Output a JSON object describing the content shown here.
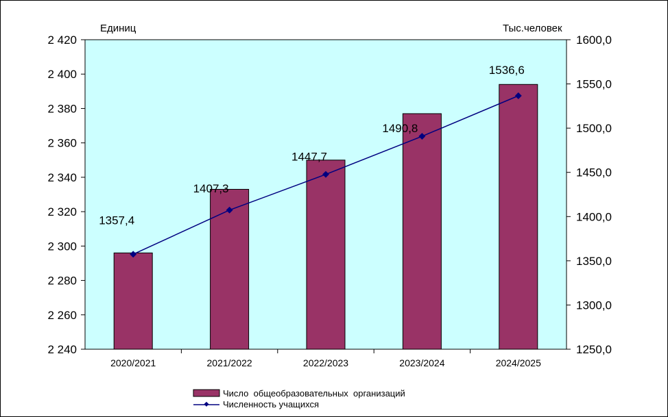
{
  "chart_data": {
    "type": "bar",
    "categories": [
      "2020/2021",
      "2021/2022",
      "2022/2023",
      "2023/2024",
      "2024/2025"
    ],
    "series": [
      {
        "name": "Число  общеобразовательных  организаций",
        "type": "bar",
        "axis": "left",
        "values": [
          2296,
          2333,
          2350,
          2377,
          2394
        ],
        "color": "#993366"
      },
      {
        "name": "Численность учащихся",
        "type": "line",
        "axis": "right",
        "values": [
          1357.4,
          1407.3,
          1447.7,
          1490.8,
          1536.6
        ],
        "labels": [
          "1357,4",
          "1407,3",
          "1447,7",
          "1490,8",
          "1536,6"
        ],
        "color": "#000080"
      }
    ],
    "left_axis": {
      "unit_label": "Единиц",
      "ylim": [
        2240,
        2420
      ],
      "ticks": [
        2240,
        2260,
        2280,
        2300,
        2320,
        2340,
        2360,
        2380,
        2400,
        2420
      ],
      "tick_labels": [
        "2 240",
        "2 260",
        "2 280",
        "2 300",
        "2 320",
        "2 340",
        "2 360",
        "2 380",
        "2 400",
        "2 420"
      ]
    },
    "right_axis": {
      "unit_label": "Тыс.человек",
      "ylim": [
        1250,
        1600
      ],
      "ticks": [
        1250,
        1300,
        1350,
        1400,
        1450,
        1500,
        1550,
        1600
      ],
      "tick_labels": [
        "1250,0",
        "1300,0",
        "1350,0",
        "1400,0",
        "1450,0",
        "1500,0",
        "1550,0",
        "1600,0"
      ]
    },
    "plot_background": "#ccffff",
    "grid": false,
    "legend_position": "bottom"
  }
}
